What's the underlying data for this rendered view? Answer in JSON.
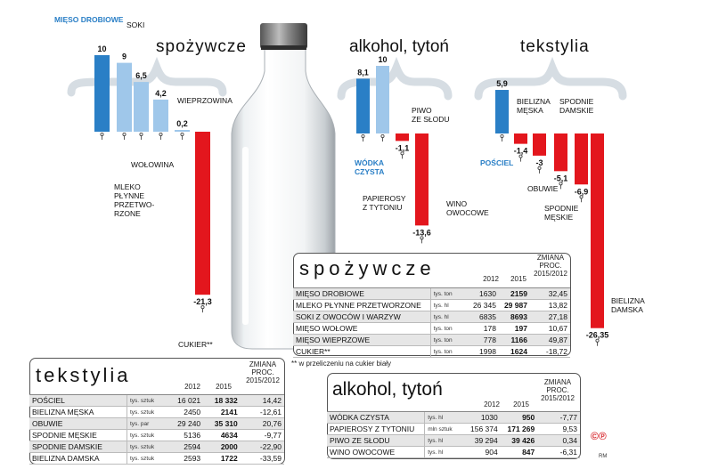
{
  "chart_data": [
    {
      "type": "bar",
      "title": "spożywcze",
      "categories": [
        "MIĘSO DROBIOWE",
        "SOKI",
        "MLEKO PŁYNNE PRZETWORZONE",
        "WOŁOWINA",
        "WIEPRZOWINA",
        "CUKIER**"
      ],
      "values": [
        10,
        9,
        6.5,
        4.2,
        0.2,
        -21.3
      ],
      "value_labels": [
        "10",
        "9",
        "6,5",
        "4,2",
        "0,2",
        "-21,3"
      ],
      "bar_labels": [
        "MIĘSO DROBIOWE",
        "SOKI",
        "MLEKO\nPŁYNNE\nPRZETWO-\nRZONE",
        "WOŁOWINA",
        "WIEPRZOWINA",
        "CUKIER**"
      ],
      "colors": [
        "#2a7fc6",
        "#9fc7ea",
        "#9fc7ea",
        "#9fc7ea",
        "#9fc7ea",
        "#e3161d"
      ]
    },
    {
      "type": "bar",
      "title": "alkohol, tytoń",
      "categories": [
        "WÓDKA CZYSTA",
        "PAPIEROSY Z TYTONIU",
        "PIWO ZE SŁODU",
        "WINO OWOCOWE"
      ],
      "values": [
        8.1,
        10,
        -1.1,
        -13.6
      ],
      "value_labels": [
        "8,1",
        "10",
        "-1,1",
        "-13,6"
      ],
      "bar_labels": [
        "WÓDKA\nCZYSTA",
        "PAPIEROSY\nZ TYTONIU",
        "PIWO\nZE SŁODU",
        "WINO\nOWOCOWE"
      ],
      "colors": [
        "#2a7fc6",
        "#9fc7ea",
        "#e3161d",
        "#e3161d"
      ]
    },
    {
      "type": "bar",
      "title": "tekstylia",
      "categories": [
        "POŚCIEL",
        "BIELIZNA MĘSKA",
        "OBUWIE",
        "SPODNIE MĘSKIE",
        "SPODNIE DAMSKIE",
        "BIELIZNA DAMSKA"
      ],
      "values": [
        5.9,
        -1.4,
        -3,
        -5.1,
        -6.9,
        -26.35
      ],
      "value_labels": [
        "5,9",
        "-1,4",
        "-3",
        "-5,1",
        "-6,9",
        "-26,35"
      ],
      "bar_labels": [
        "POŚCIEL",
        "BIELIZNA\nMĘSKA",
        "OBUWIE",
        "SPODNIE\nMĘSKIE",
        "SPODNIE\nDAMSKIE",
        "BIELIZNA\nDAMSKA"
      ],
      "colors": [
        "#2a7fc6",
        "#e3161d",
        "#e3161d",
        "#e3161d",
        "#e3161d",
        "#e3161d"
      ]
    }
  ],
  "tables": {
    "spozywcze": {
      "title": "spożywcze",
      "headers": [
        "2012",
        "2015",
        "ZMIANA\nPROC.\n2015/2012"
      ],
      "rows": [
        [
          "MIĘSO DROBIOWE",
          "tys. ton",
          "1630",
          "2159",
          "32,45"
        ],
        [
          "MLEKO PŁYNNE PRZETWORZONE",
          "tys. hl",
          "26 345",
          "29 987",
          "13,82"
        ],
        [
          "SOKI Z OWOCÓW I WARZYW",
          "tys. hl",
          "6835",
          "8693",
          "27,18"
        ],
        [
          "MIĘSO WOŁOWE",
          "tys. ton",
          "178",
          "197",
          "10,67"
        ],
        [
          "MIĘSO WIEPRZOWE",
          "tys. ton",
          "778",
          "1166",
          "49,87"
        ],
        [
          "CUKIER**",
          "tys. ton",
          "1998",
          "1624",
          "-18,72"
        ]
      ]
    },
    "tekstylia": {
      "title": "tekstylia",
      "headers": [
        "2012",
        "2015",
        "ZMIANA\nPROC.\n2015/2012"
      ],
      "rows": [
        [
          "POŚCIEL",
          "tys. sztuk",
          "16 021",
          "18 332",
          "14,42"
        ],
        [
          "BIELIZNA MĘSKA",
          "tys. sztuk",
          "2450",
          "2141",
          "-12,61"
        ],
        [
          "OBUWIE",
          "tys. par",
          "29 240",
          "35 310",
          "20,76"
        ],
        [
          "SPODNIE MĘSKIE",
          "tys. sztuk",
          "5136",
          "4634",
          "-9,77"
        ],
        [
          "SPODNIE DAMSKIE",
          "tys. sztuk",
          "2594",
          "2000",
          "-22,90"
        ],
        [
          "BIELIZNA DAMSKA",
          "tys. sztuk",
          "2593",
          "1722",
          "-33,59"
        ]
      ]
    },
    "alkohol": {
      "title": "alkohol, tytoń",
      "headers": [
        "2012",
        "2015",
        "ZMIANA\nPROC.\n2015/2012"
      ],
      "rows": [
        [
          "WÓDKA CZYSTA",
          "tys. hl",
          "1030",
          "950",
          "-7,77"
        ],
        [
          "PAPIEROSY Z TYTONIU",
          "mln sztuk",
          "156 374",
          "171 269",
          "9,53"
        ],
        [
          "PIWO ZE SŁODU",
          "tys. hl",
          "39 294",
          "39 426",
          "0,34"
        ],
        [
          "WINO OWOCOWE",
          "tys. hl",
          "904",
          "847",
          "-6,31"
        ]
      ]
    }
  },
  "footnote": "** w przeliczeniu na cukier biały",
  "brand": "©℗",
  "credit": "RM",
  "colors": {
    "strong_blue": "#2a7fc6",
    "light_blue": "#9fc7ea",
    "red": "#e3161d",
    "brace": "#d6dde3"
  }
}
